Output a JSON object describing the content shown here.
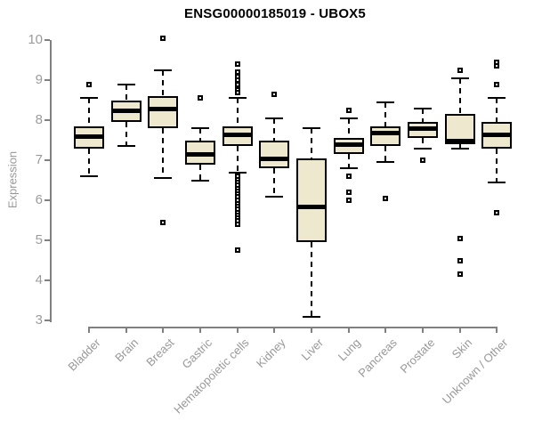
{
  "chart_data": {
    "type": "boxplot",
    "title": "ENSG00000185019 - UBOX5",
    "xlabel": "",
    "ylabel": "Expression",
    "ylim": [
      3,
      10
    ],
    "yticks": [
      3,
      4,
      5,
      6,
      7,
      8,
      9,
      10
    ],
    "grid": false,
    "legend": false,
    "categories": [
      "Bladder",
      "Brain",
      "Breast",
      "Gastric",
      "Hematopoietic cells",
      "Kidney",
      "Liver",
      "Lung",
      "Pancreas",
      "Prostate",
      "Skin",
      "Unknown / Other"
    ],
    "series": [
      {
        "label": "Bladder",
        "whisker_low": 6.6,
        "q1": 7.3,
        "median": 7.6,
        "q3": 7.85,
        "whisker_high": 8.55,
        "outliers": [
          8.9
        ]
      },
      {
        "label": "Brain",
        "whisker_low": 7.35,
        "q1": 7.95,
        "median": 8.25,
        "q3": 8.5,
        "whisker_high": 8.9,
        "outliers": []
      },
      {
        "label": "Breast",
        "whisker_low": 6.55,
        "q1": 7.8,
        "median": 8.3,
        "q3": 8.6,
        "whisker_high": 9.25,
        "outliers": [
          10.05,
          5.45
        ]
      },
      {
        "label": "Gastric",
        "whisker_low": 6.5,
        "q1": 6.9,
        "median": 7.15,
        "q3": 7.5,
        "whisker_high": 7.8,
        "outliers": [
          8.55
        ]
      },
      {
        "label": "Hematopoietic cells",
        "whisker_low": 6.7,
        "q1": 7.35,
        "median": 7.65,
        "q3": 7.85,
        "whisker_high": 8.55,
        "outliers": [
          9.4,
          9.2,
          9.1,
          9.0,
          8.9,
          8.75,
          8.7,
          6.6,
          6.52,
          6.45,
          6.38,
          6.3,
          6.22,
          6.15,
          6.08,
          6.0,
          5.92,
          5.85,
          5.78,
          5.7,
          5.62,
          5.55,
          5.48,
          5.4,
          4.75
        ]
      },
      {
        "label": "Kidney",
        "whisker_low": 6.1,
        "q1": 6.8,
        "median": 7.05,
        "q3": 7.5,
        "whisker_high": 8.05,
        "outliers": [
          8.65
        ]
      },
      {
        "label": "Liver",
        "whisker_low": 3.1,
        "q1": 4.95,
        "median": 5.85,
        "q3": 7.05,
        "whisker_high": 7.8,
        "outliers": []
      },
      {
        "label": "Lung",
        "whisker_low": 6.8,
        "q1": 7.15,
        "median": 7.4,
        "q3": 7.55,
        "whisker_high": 8.05,
        "outliers": [
          8.25,
          6.6,
          6.2,
          6.0
        ]
      },
      {
        "label": "Pancreas",
        "whisker_low": 6.95,
        "q1": 7.35,
        "median": 7.7,
        "q3": 7.85,
        "whisker_high": 8.45,
        "outliers": [
          6.05
        ]
      },
      {
        "label": "Prostate",
        "whisker_low": 7.3,
        "q1": 7.55,
        "median": 7.8,
        "q3": 7.95,
        "whisker_high": 8.3,
        "outliers": [
          7.0
        ]
      },
      {
        "label": "Skin",
        "whisker_low": 7.3,
        "q1": 7.4,
        "median": 7.5,
        "q3": 8.15,
        "whisker_high": 9.05,
        "outliers": [
          9.25,
          5.05,
          4.5,
          4.15
        ]
      },
      {
        "label": "Unknown / Other",
        "whisker_low": 6.45,
        "q1": 7.3,
        "median": 7.65,
        "q3": 7.95,
        "whisker_high": 8.55,
        "outliers": [
          9.45,
          9.35,
          8.9,
          5.7
        ]
      }
    ],
    "colors": {
      "box_fill": "#EDE8CE",
      "box_border": "#000000",
      "median": "#000000",
      "whisker": "#000000",
      "axis": "#808080",
      "tick_text": "#9b9b9b",
      "category_text": "#989898",
      "title_text": "#000000",
      "background": "#ffffff"
    }
  }
}
